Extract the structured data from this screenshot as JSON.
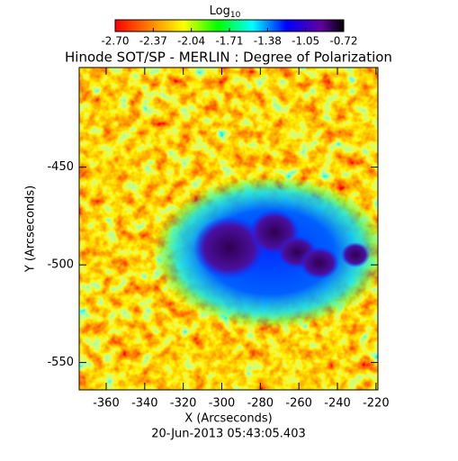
{
  "chart_data": {
    "type": "image",
    "title": "Hinode SOT/SP - MERLIN : Degree of Polarization",
    "xlabel": "X (Arcseconds)",
    "ylabel": "Y (Arcseconds)",
    "date": "20-Jun-2013 05:43:05.403",
    "colorbar_label": "Log",
    "colorbar_label_sub": "10",
    "xlim": [
      -374,
      -219
    ],
    "xticks": [
      -360,
      -340,
      -320,
      -300,
      -280,
      -260,
      -240,
      -220
    ],
    "ylim": [
      -564,
      -399
    ],
    "yticks": [
      -450,
      -500,
      -550
    ],
    "clim": [
      -2.7,
      -0.72
    ],
    "cticks": [
      {
        "value": -2.7,
        "label": "-2.70"
      },
      {
        "value": -2.37,
        "label": "-2.37"
      },
      {
        "value": -2.04,
        "label": "-2.04"
      },
      {
        "value": -1.71,
        "label": "-1.71"
      },
      {
        "value": -1.38,
        "label": "-1.38"
      },
      {
        "value": -1.05,
        "label": "-1.05"
      },
      {
        "value": -0.72,
        "label": "-0.72"
      }
    ]
  }
}
